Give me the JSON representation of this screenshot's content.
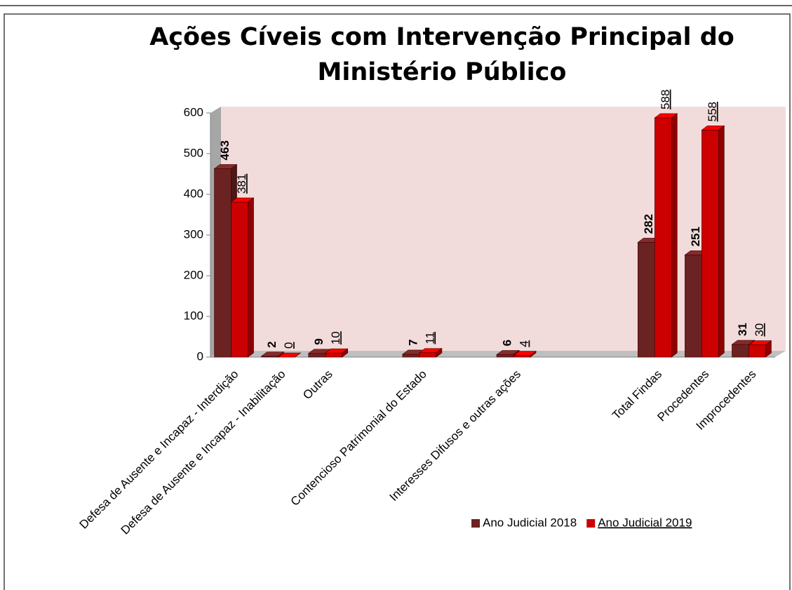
{
  "chart_data": {
    "type": "bar3d",
    "title": "Ações Cíveis com Intervenção Principal do Ministério Público",
    "categories": [
      "Defesa de Ausente e Incapaz - Interdição",
      "Defesa de Ausente e Incapaz - Inabilitação",
      "Outras",
      null,
      "Contencioso Patrimonial do Estado",
      null,
      "Interesses Difusos e outras ações",
      null,
      null,
      "Total Findas",
      "Procedentes",
      "Improcedentes"
    ],
    "series": [
      {
        "name": "Ano Judicial 2018",
        "color": "#6b2222",
        "values": [
          463,
          2,
          9,
          null,
          7,
          null,
          6,
          null,
          null,
          282,
          251,
          31
        ]
      },
      {
        "name": "Ano Judicial 2019",
        "color": "#cc0000",
        "values": [
          381,
          0,
          10,
          null,
          11,
          null,
          4,
          null,
          null,
          588,
          558,
          30
        ]
      }
    ],
    "ylim": [
      0,
      600
    ],
    "yticks": [
      0,
      100,
      200,
      300,
      400,
      500,
      600
    ],
    "legend": "bottom-right"
  }
}
